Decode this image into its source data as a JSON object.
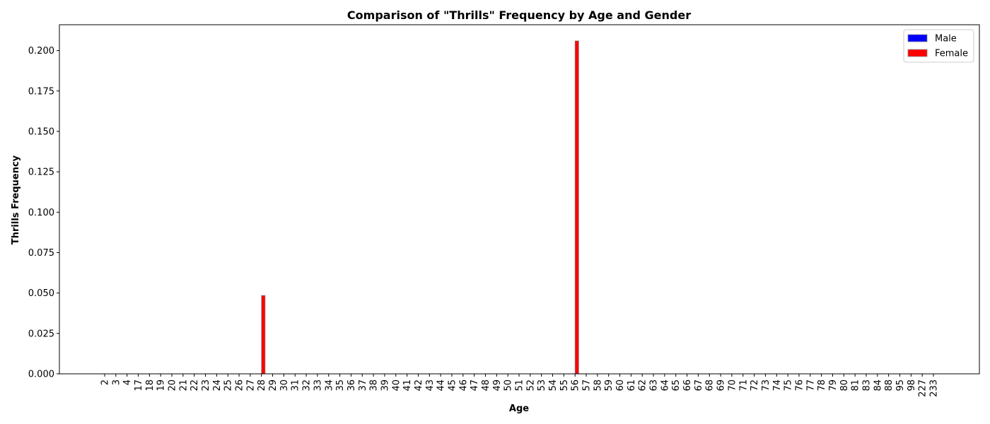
{
  "chart_data": {
    "type": "bar",
    "title": "Comparison of \"Thrills\" Frequency by Age and Gender",
    "xlabel": "Age",
    "ylabel": "Thrills Frequency",
    "ylim": [
      0,
      0.216
    ],
    "yticks": [
      "0.000",
      "0.025",
      "0.050",
      "0.075",
      "0.100",
      "0.125",
      "0.150",
      "0.175",
      "0.200"
    ],
    "ytick_values": [
      0,
      0.025,
      0.05,
      0.075,
      0.1,
      0.125,
      0.15,
      0.175,
      0.2
    ],
    "categories": [
      "2",
      "3",
      "4",
      "17",
      "18",
      "19",
      "20",
      "21",
      "22",
      "23",
      "24",
      "25",
      "26",
      "27",
      "28",
      "29",
      "30",
      "31",
      "32",
      "33",
      "34",
      "35",
      "36",
      "37",
      "38",
      "39",
      "40",
      "41",
      "42",
      "43",
      "44",
      "45",
      "46",
      "47",
      "48",
      "49",
      "50",
      "51",
      "52",
      "53",
      "54",
      "55",
      "56",
      "57",
      "58",
      "59",
      "60",
      "61",
      "62",
      "63",
      "64",
      "65",
      "66",
      "67",
      "68",
      "69",
      "70",
      "71",
      "72",
      "73",
      "74",
      "75",
      "76",
      "77",
      "78",
      "79",
      "80",
      "81",
      "83",
      "84",
      "88",
      "95",
      "98",
      "227",
      "233"
    ],
    "series": [
      {
        "name": "Male",
        "color": "#0000ff",
        "values": [
          0,
          0,
          0,
          0,
          0,
          0,
          0,
          0,
          0,
          0,
          0,
          0,
          0,
          0,
          0,
          0,
          0,
          0,
          0,
          0,
          0,
          0,
          0,
          0,
          0,
          0,
          0,
          0,
          0,
          0,
          0,
          0,
          0,
          0,
          0,
          0,
          0,
          0,
          0,
          0,
          0,
          0,
          0,
          0,
          0,
          0,
          0,
          0,
          0,
          0,
          0,
          0,
          0,
          0,
          0,
          0,
          0,
          0,
          0,
          0,
          0,
          0,
          0,
          0,
          0,
          0,
          0,
          0,
          0,
          0,
          0,
          0,
          0,
          0,
          0
        ]
      },
      {
        "name": "Female",
        "color": "#ff0000",
        "values": [
          0,
          0,
          0,
          0,
          0,
          0,
          0,
          0,
          0,
          0,
          0,
          0,
          0,
          0,
          0.0485,
          0,
          0,
          0,
          0,
          0,
          0,
          0,
          0,
          0,
          0,
          0,
          0,
          0,
          0,
          0,
          0,
          0,
          0,
          0,
          0,
          0,
          0,
          0,
          0,
          0,
          0,
          0,
          0.206,
          0,
          0,
          0,
          0,
          0,
          0,
          0,
          0,
          0,
          0,
          0,
          0,
          0,
          0,
          0,
          0,
          0,
          0,
          0,
          0,
          0,
          0,
          0,
          0,
          0,
          0,
          0,
          0,
          0,
          0,
          0,
          0
        ]
      }
    ],
    "legend_position": "top-right",
    "grid": false
  }
}
